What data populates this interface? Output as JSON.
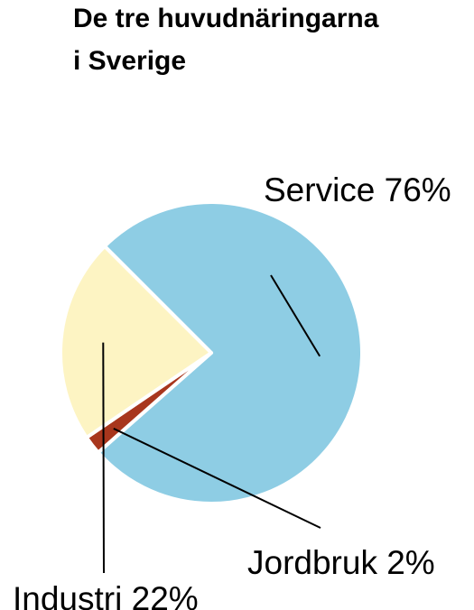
{
  "chart_data": {
    "type": "pie",
    "title": "De tre huvudnäringarna i Sverige",
    "title_lines": [
      "De tre huvudnäringarna",
      "i Sverige"
    ],
    "slices": [
      {
        "label": "Service",
        "value": 76,
        "display": "Service 76%",
        "color": "#8ecde4"
      },
      {
        "label": "Jordbruk",
        "value": 2,
        "display": "Jordbruk 2%",
        "color": "#a8361d"
      },
      {
        "label": "Industri",
        "value": 22,
        "display": "Industri 22%",
        "color": "#fdf4c3"
      }
    ],
    "legend": "none",
    "unit": "%"
  }
}
